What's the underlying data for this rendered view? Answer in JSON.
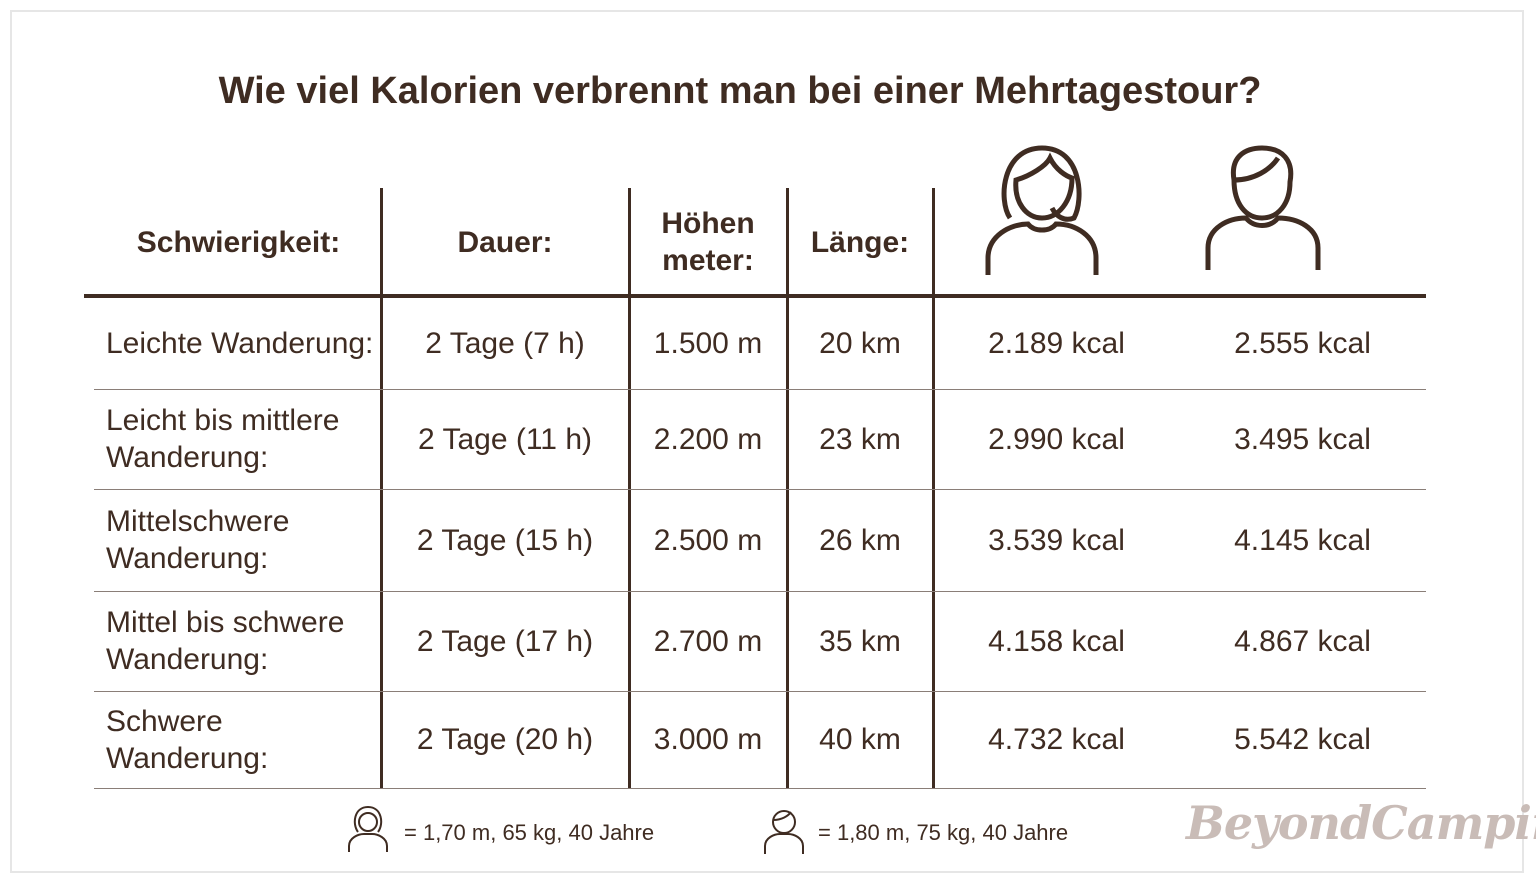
{
  "title": "Wie viel Kalorien verbrennt man bei einer Mehrtagestour?",
  "table": {
    "headers": [
      "Schwierigkeit:",
      "Dauer:",
      "Höhen meter:",
      "Länge:"
    ],
    "rows": [
      [
        "Leichte Wanderung:",
        "2 Tage (7 h)",
        "1.500 m",
        "20 km",
        "2.189 kcal",
        "2.555 kcal"
      ],
      [
        "Leicht bis mittlere Wanderung:",
        "2 Tage (11 h)",
        "2.200 m",
        "23 km",
        "2.990 kcal",
        "3.495 kcal"
      ],
      [
        "Mittelschwere Wanderung:",
        "2 Tage (15 h)",
        "2.500 m",
        "26 km",
        "3.539 kcal",
        "4.145 kcal"
      ],
      [
        "Mittel bis schwere Wanderung:",
        "2 Tage (17 h)",
        "2.700 m",
        "35 km",
        "4.158 kcal",
        "4.867 kcal"
      ],
      [
        "Schwere Wanderung:",
        "2 Tage (20 h)",
        "3.000 m",
        "40 km",
        "4.732 kcal",
        "5.542 kcal"
      ]
    ]
  },
  "legend": [
    "= 1,70 m, 65 kg, 40 Jahre",
    "= 1,80 m, 75 kg, 40 Jahre"
  ],
  "logo": "BeyondCamping"
}
